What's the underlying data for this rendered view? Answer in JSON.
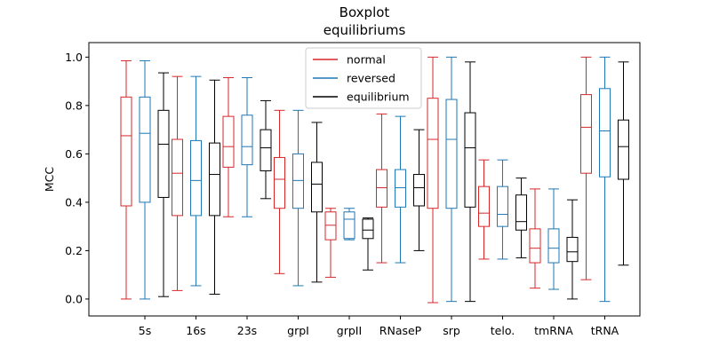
{
  "chart_data": {
    "type": "boxplot",
    "title": "Boxplot",
    "subtitle": "equilibriums",
    "xlabel": "",
    "ylabel": "MCC",
    "ylim": [
      -0.07,
      1.06
    ],
    "yticks": [
      "0.0",
      "0.2",
      "0.4",
      "0.6",
      "0.8",
      "1.0"
    ],
    "grid": false,
    "legend_position": "top-center",
    "categories": [
      "5s",
      "16s",
      "23s",
      "grpI",
      "grpII",
      "RNaseP",
      "srp",
      "telo.",
      "tmRNA",
      "tRNA"
    ],
    "series": [
      {
        "name": "normal",
        "color": "#d62728",
        "boxes": [
          {
            "whislo": 0.0,
            "q1": 0.385,
            "med": 0.675,
            "q3": 0.835,
            "whishi": 0.985
          },
          {
            "whislo": 0.035,
            "q1": 0.345,
            "med": 0.52,
            "q3": 0.66,
            "whishi": 0.92
          },
          {
            "whislo": 0.34,
            "q1": 0.545,
            "med": 0.63,
            "q3": 0.755,
            "whishi": 0.915
          },
          {
            "whislo": 0.105,
            "q1": 0.375,
            "med": 0.495,
            "q3": 0.585,
            "whishi": 0.78
          },
          {
            "whislo": 0.09,
            "q1": 0.245,
            "med": 0.305,
            "q3": 0.36,
            "whishi": 0.375
          },
          {
            "whislo": 0.15,
            "q1": 0.38,
            "med": 0.46,
            "q3": 0.535,
            "whishi": 0.765
          },
          {
            "whislo": -0.015,
            "q1": 0.375,
            "med": 0.66,
            "q3": 0.83,
            "whishi": 1.0
          },
          {
            "whislo": 0.165,
            "q1": 0.3,
            "med": 0.355,
            "q3": 0.465,
            "whishi": 0.575
          },
          {
            "whislo": 0.045,
            "q1": 0.15,
            "med": 0.21,
            "q3": 0.29,
            "whishi": 0.455
          },
          {
            "whislo": 0.08,
            "q1": 0.52,
            "med": 0.71,
            "q3": 0.845,
            "whishi": 1.0
          }
        ]
      },
      {
        "name": "reversed",
        "color": "#1f77b4",
        "boxes": [
          {
            "whislo": 0.0,
            "q1": 0.4,
            "med": 0.685,
            "q3": 0.835,
            "whishi": 0.985
          },
          {
            "whislo": 0.055,
            "q1": 0.345,
            "med": 0.49,
            "q3": 0.655,
            "whishi": 0.92
          },
          {
            "whislo": 0.34,
            "q1": 0.555,
            "med": 0.63,
            "q3": 0.76,
            "whishi": 0.915
          },
          {
            "whislo": 0.055,
            "q1": 0.375,
            "med": 0.49,
            "q3": 0.6,
            "whishi": 0.78
          },
          {
            "whislo": 0.245,
            "q1": 0.25,
            "med": 0.33,
            "q3": 0.36,
            "whishi": 0.375
          },
          {
            "whislo": 0.15,
            "q1": 0.38,
            "med": 0.46,
            "q3": 0.535,
            "whishi": 0.755
          },
          {
            "whislo": -0.01,
            "q1": 0.375,
            "med": 0.66,
            "q3": 0.825,
            "whishi": 1.0
          },
          {
            "whislo": 0.165,
            "q1": 0.3,
            "med": 0.35,
            "q3": 0.465,
            "whishi": 0.575
          },
          {
            "whislo": 0.04,
            "q1": 0.15,
            "med": 0.21,
            "q3": 0.29,
            "whishi": 0.455
          },
          {
            "whislo": -0.01,
            "q1": 0.505,
            "med": 0.695,
            "q3": 0.87,
            "whishi": 1.0
          }
        ]
      },
      {
        "name": "equilibrium",
        "color": "#000000",
        "boxes": [
          {
            "whislo": 0.01,
            "q1": 0.42,
            "med": 0.64,
            "q3": 0.78,
            "whishi": 0.935
          },
          {
            "whislo": 0.02,
            "q1": 0.345,
            "med": 0.515,
            "q3": 0.645,
            "whishi": 0.905
          },
          {
            "whislo": 0.415,
            "q1": 0.53,
            "med": 0.625,
            "q3": 0.7,
            "whishi": 0.82
          },
          {
            "whislo": 0.07,
            "q1": 0.36,
            "med": 0.475,
            "q3": 0.565,
            "whishi": 0.73
          },
          {
            "whislo": 0.12,
            "q1": 0.25,
            "med": 0.285,
            "q3": 0.33,
            "whishi": 0.335
          },
          {
            "whislo": 0.2,
            "q1": 0.385,
            "med": 0.46,
            "q3": 0.515,
            "whishi": 0.7
          },
          {
            "whislo": -0.01,
            "q1": 0.38,
            "med": 0.625,
            "q3": 0.77,
            "whishi": 0.98
          },
          {
            "whislo": 0.17,
            "q1": 0.285,
            "med": 0.32,
            "q3": 0.43,
            "whishi": 0.5
          },
          {
            "whislo": 0.0,
            "q1": 0.155,
            "med": 0.195,
            "q3": 0.255,
            "whishi": 0.41
          },
          {
            "whislo": 0.14,
            "q1": 0.495,
            "med": 0.63,
            "q3": 0.74,
            "whishi": 0.98
          }
        ]
      }
    ]
  }
}
